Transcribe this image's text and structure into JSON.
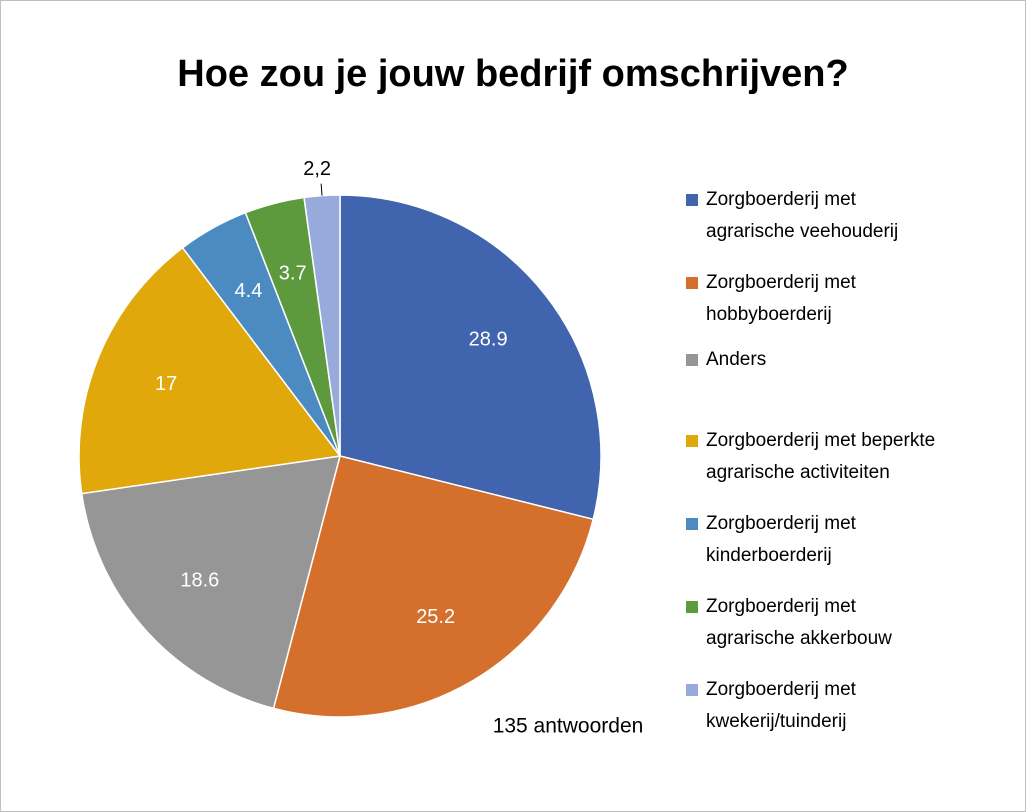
{
  "chart_data": {
    "type": "pie",
    "title": "Hoe zou je jouw bedrijf omschrijven?",
    "subtitle": "135 antwoorden",
    "categories": [
      "Zorgboerderij met agrarische veehouderij",
      "Zorgboerderij met hobbyboerderij",
      "Anders",
      "Zorgboerderij met beperkte agrarische activiteiten",
      "Zorgboerderij met kinderboerderij",
      "Zorgboerderij met agrarische akkerbouw",
      "Zorgboerderij met kwekerij/tuinderij"
    ],
    "values": [
      28.9,
      25.2,
      18.6,
      17,
      4.4,
      3.7,
      2.2
    ],
    "value_labels": [
      "28.9",
      "25.2",
      "18.6",
      "17",
      "4.4",
      "3.7",
      "2,2"
    ],
    "colors": [
      "#4064ad",
      "#d4702c",
      "#969696",
      "#e0a80a",
      "#4b8bc2",
      "#5d9a3d",
      "#98aadb"
    ],
    "legend": "right"
  }
}
